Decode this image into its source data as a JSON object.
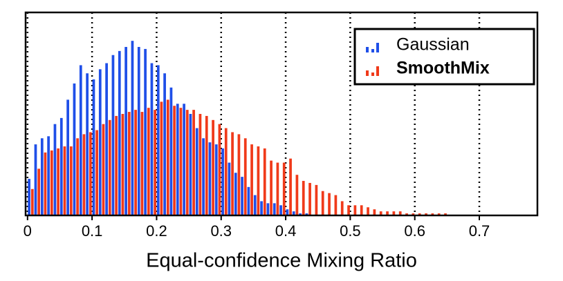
{
  "chart_data": {
    "type": "histogram",
    "x_label": "Equal-confidence Mixing Ratio",
    "bins": [
      0,
      0.01,
      0.02,
      0.03,
      0.04,
      0.05,
      0.06,
      0.07,
      0.08,
      0.09,
      0.1,
      0.11,
      0.12,
      0.13,
      0.14,
      0.15,
      0.16,
      0.17,
      0.18,
      0.19,
      0.2,
      0.21,
      0.22,
      0.23,
      0.24,
      0.25,
      0.26,
      0.27,
      0.28,
      0.29,
      0.3,
      0.31,
      0.32,
      0.33,
      0.34,
      0.35,
      0.36,
      0.37,
      0.38,
      0.39,
      0.4,
      0.41,
      0.42,
      0.43,
      0.44,
      0.45,
      0.46,
      0.47,
      0.48,
      0.49,
      0.5,
      0.51,
      0.52,
      0.53,
      0.54,
      0.55,
      0.56,
      0.57,
      0.58,
      0.59,
      0.6,
      0.61,
      0.62,
      0.63,
      0.64,
      0.65,
      0.66,
      0.67,
      0.68,
      0.69,
      0.7,
      0.71,
      0.72,
      0.73,
      0.74,
      0.75,
      0.76,
      0.77,
      0.78
    ],
    "series": [
      {
        "name": "Gaussian",
        "color": "#1f4fe8",
        "values": [
          18,
          35,
          38,
          39,
          45,
          48,
          57,
          65,
          74,
          70,
          67,
          72,
          75,
          79,
          81,
          83,
          86,
          83,
          82,
          75,
          74,
          70,
          63,
          55,
          55,
          50,
          43,
          38,
          36,
          35,
          33,
          26,
          21,
          19,
          14,
          10,
          7,
          6,
          6,
          5,
          3,
          2,
          1,
          1,
          0,
          0,
          0,
          0,
          0,
          0,
          0,
          0,
          0,
          0,
          0,
          0,
          0,
          0,
          0,
          0,
          0,
          0,
          0,
          0,
          0,
          0,
          0,
          0,
          0,
          0,
          0,
          0,
          0,
          0,
          0,
          0,
          0,
          0
        ]
      },
      {
        "name": "SmoothMix",
        "color": "#f03a1a",
        "values": [
          13,
          23,
          31,
          32,
          33,
          34,
          34,
          38,
          40,
          41,
          42,
          45,
          47,
          49,
          50,
          51,
          52,
          51,
          53,
          52,
          56,
          57,
          54,
          53,
          52,
          52,
          50,
          49,
          47,
          45,
          43,
          41,
          40,
          38,
          35,
          34,
          33,
          27,
          26,
          26,
          28,
          20,
          17,
          16,
          15,
          12,
          11,
          10,
          7,
          5,
          5,
          5,
          4,
          3,
          2,
          2,
          2,
          2,
          1,
          1,
          1,
          1,
          1,
          1,
          1,
          0,
          0,
          0,
          0,
          0,
          0,
          0,
          0,
          0,
          0,
          0,
          0,
          0
        ]
      }
    ],
    "xlim": [
      -0.003,
      0.79
    ],
    "xticks": [
      0,
      0.1,
      0.2,
      0.3,
      0.4,
      0.5,
      0.6,
      0.7
    ],
    "ylim": [
      0,
      100
    ],
    "grid": true,
    "legend_position": "upper right"
  }
}
